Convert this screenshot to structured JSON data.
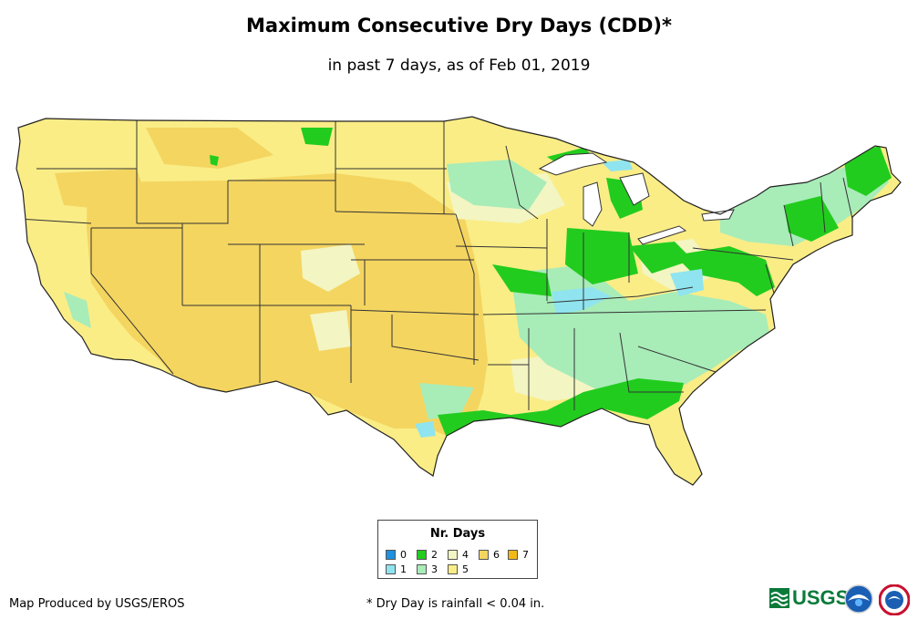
{
  "title": "Maximum Consecutive Dry Days (CDD)*",
  "subtitle": "in past 7 days, as of Feb 01, 2019",
  "legend": {
    "title": "Nr. Days",
    "items": [
      {
        "label": "0",
        "color": "#1e90e0"
      },
      {
        "label": "1",
        "color": "#8fe4ef"
      },
      {
        "label": "2",
        "color": "#22cc1e"
      },
      {
        "label": "3",
        "color": "#a8ecb8"
      },
      {
        "label": "4",
        "color": "#f3f5c2"
      },
      {
        "label": "5",
        "color": "#faed86"
      },
      {
        "label": "6",
        "color": "#f4d560"
      },
      {
        "label": "7",
        "color": "#f2b915"
      }
    ]
  },
  "credit": "Map Produced by USGS/EROS",
  "footnote": "* Dry Day is rainfall < 0.04 in.",
  "logos": {
    "usgs": "USGS"
  }
}
